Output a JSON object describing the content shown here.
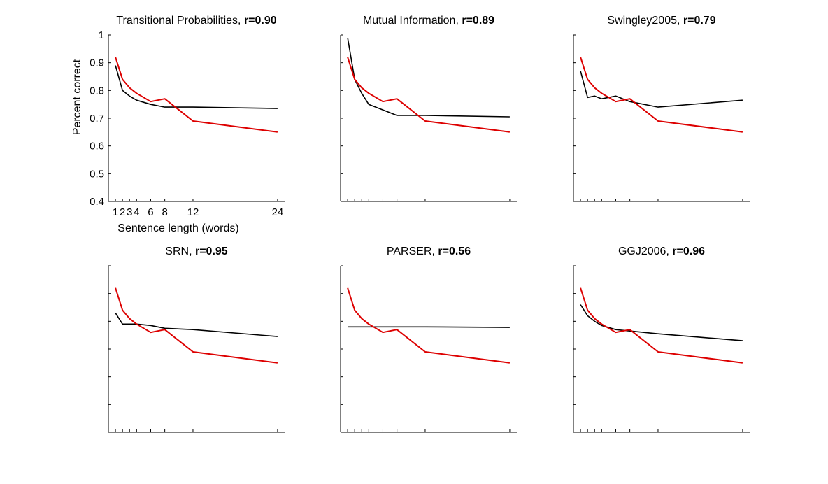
{
  "chart_data": [
    {
      "type": "line",
      "title": "Transitional Probabilities, ",
      "title_r": "r=0.90",
      "xlabel": "Sentence length (words)",
      "ylabel": "Percent correct",
      "xlim": [
        0,
        25
      ],
      "ylim": [
        0.4,
        1
      ],
      "xticks": [
        1,
        2,
        3,
        4,
        6,
        8,
        12,
        24
      ],
      "xtick_labels": [
        "1",
        "2",
        "3",
        "4",
        "6",
        "8",
        "12",
        "24"
      ],
      "yticks": [
        0.4,
        0.5,
        0.6,
        0.7,
        0.8,
        0.9,
        1
      ],
      "ytick_labels": [
        "0.4",
        "0.5",
        "0.6",
        "0.7",
        "0.8",
        "0.9",
        "1"
      ],
      "grid": false,
      "x": [
        1,
        2,
        3,
        4,
        6,
        8,
        12,
        24
      ],
      "series": [
        {
          "color": "#dd0000",
          "values": [
            0.92,
            0.84,
            0.81,
            0.79,
            0.76,
            0.77,
            0.69,
            0.65
          ]
        },
        {
          "color": "#000000",
          "values": [
            0.89,
            0.8,
            0.78,
            0.765,
            0.75,
            0.74,
            0.74,
            0.735
          ]
        }
      ]
    },
    {
      "type": "line",
      "title": "Mutual Information, ",
      "title_r": "r=0.89",
      "xlim": [
        0,
        25
      ],
      "ylim": [
        0.4,
        1
      ],
      "xticks": [
        1,
        2,
        3,
        4,
        6,
        8,
        12,
        24
      ],
      "yticks": [
        0.4,
        0.5,
        0.6,
        0.7,
        0.8,
        0.9,
        1
      ],
      "grid": false,
      "x": [
        1,
        2,
        3,
        4,
        6,
        8,
        12,
        24
      ],
      "series": [
        {
          "color": "#dd0000",
          "values": [
            0.92,
            0.84,
            0.81,
            0.79,
            0.76,
            0.77,
            0.69,
            0.65
          ]
        },
        {
          "color": "#000000",
          "values": [
            0.99,
            0.84,
            0.79,
            0.75,
            0.73,
            0.71,
            0.71,
            0.705
          ]
        }
      ]
    },
    {
      "type": "line",
      "title": "Swingley2005, ",
      "title_r": "r=0.79",
      "xlim": [
        0,
        25
      ],
      "ylim": [
        0.4,
        1
      ],
      "xticks": [
        1,
        2,
        3,
        4,
        6,
        8,
        12,
        24
      ],
      "yticks": [
        0.4,
        0.5,
        0.6,
        0.7,
        0.8,
        0.9,
        1
      ],
      "grid": false,
      "x": [
        1,
        2,
        3,
        4,
        6,
        8,
        12,
        24
      ],
      "series": [
        {
          "color": "#dd0000",
          "values": [
            0.92,
            0.84,
            0.81,
            0.79,
            0.76,
            0.77,
            0.69,
            0.65
          ]
        },
        {
          "color": "#000000",
          "values": [
            0.87,
            0.775,
            0.78,
            0.77,
            0.78,
            0.76,
            0.74,
            0.765
          ]
        }
      ]
    },
    {
      "type": "line",
      "title": "SRN, ",
      "title_r": "r=0.95",
      "xlim": [
        0,
        25
      ],
      "ylim": [
        0.4,
        1
      ],
      "xticks": [
        1,
        2,
        3,
        4,
        6,
        8,
        12,
        24
      ],
      "yticks": [
        0.4,
        0.5,
        0.6,
        0.7,
        0.8,
        0.9,
        1
      ],
      "grid": false,
      "x": [
        1,
        2,
        3,
        4,
        6,
        8,
        12,
        24
      ],
      "series": [
        {
          "color": "#dd0000",
          "values": [
            0.92,
            0.84,
            0.81,
            0.79,
            0.76,
            0.77,
            0.69,
            0.65
          ]
        },
        {
          "color": "#000000",
          "values": [
            0.83,
            0.79,
            0.79,
            0.79,
            0.785,
            0.775,
            0.77,
            0.745
          ]
        }
      ]
    },
    {
      "type": "line",
      "title": "PARSER, ",
      "title_r": "r=0.56",
      "xlim": [
        0,
        25
      ],
      "ylim": [
        0.4,
        1
      ],
      "xticks": [
        1,
        2,
        3,
        4,
        6,
        8,
        12,
        24
      ],
      "yticks": [
        0.4,
        0.5,
        0.6,
        0.7,
        0.8,
        0.9,
        1
      ],
      "grid": false,
      "x": [
        1,
        2,
        3,
        4,
        6,
        8,
        12,
        24
      ],
      "series": [
        {
          "color": "#dd0000",
          "values": [
            0.92,
            0.84,
            0.81,
            0.79,
            0.76,
            0.77,
            0.69,
            0.65
          ]
        },
        {
          "color": "#000000",
          "values": [
            0.78,
            0.78,
            0.78,
            0.78,
            0.78,
            0.78,
            0.78,
            0.778
          ]
        }
      ]
    },
    {
      "type": "line",
      "title": "GGJ2006, ",
      "title_r": "r=0.96",
      "xlim": [
        0,
        25
      ],
      "ylim": [
        0.4,
        1
      ],
      "xticks": [
        1,
        2,
        3,
        4,
        6,
        8,
        12,
        24
      ],
      "yticks": [
        0.4,
        0.5,
        0.6,
        0.7,
        0.8,
        0.9,
        1
      ],
      "grid": false,
      "x": [
        1,
        2,
        3,
        4,
        6,
        8,
        12,
        24
      ],
      "series": [
        {
          "color": "#dd0000",
          "values": [
            0.92,
            0.84,
            0.81,
            0.79,
            0.76,
            0.77,
            0.69,
            0.65
          ]
        },
        {
          "color": "#000000",
          "values": [
            0.86,
            0.82,
            0.8,
            0.785,
            0.77,
            0.765,
            0.755,
            0.73
          ]
        }
      ]
    }
  ]
}
